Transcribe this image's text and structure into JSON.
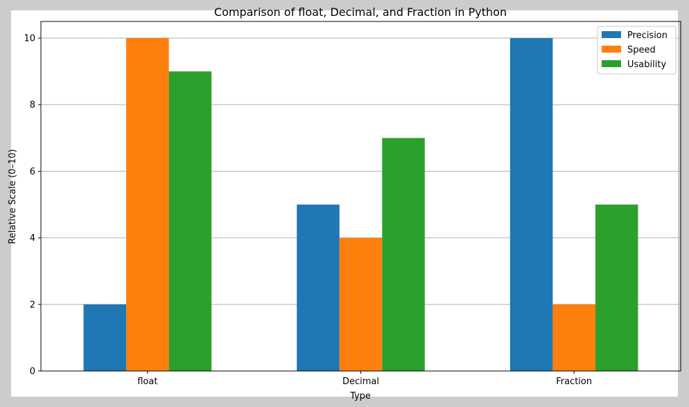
{
  "chart_data": {
    "type": "bar",
    "title": "Comparison of float, Decimal, and Fraction in Python",
    "xlabel": "Type",
    "ylabel": "Relative Scale (0–10)",
    "categories": [
      "float",
      "Decimal",
      "Fraction"
    ],
    "series": [
      {
        "name": "Precision",
        "values": [
          2,
          5,
          10
        ],
        "color": "#1f77b4"
      },
      {
        "name": "Speed",
        "values": [
          10,
          4,
          2
        ],
        "color": "#ff7f0e"
      },
      {
        "name": "Usability",
        "values": [
          9,
          7,
          5
        ],
        "color": "#2ca02c"
      }
    ],
    "ylim": [
      0,
      10.5
    ],
    "yticks": [
      "0",
      "2",
      "4",
      "6",
      "8",
      "10"
    ],
    "grid": "y",
    "legend": "top-right"
  }
}
